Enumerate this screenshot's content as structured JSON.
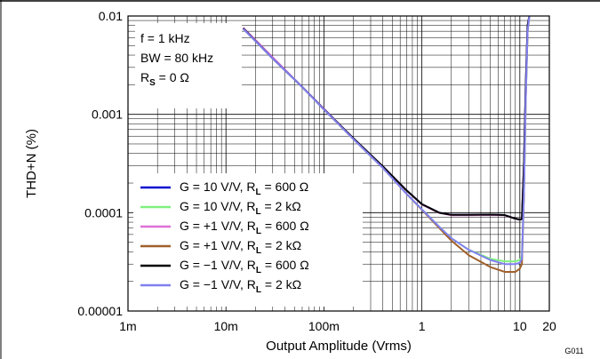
{
  "chart_data": {
    "type": "line",
    "title": "",
    "xlabel": "Output Amplitude (Vrms)",
    "ylabel": "THD+N (%)",
    "xscale": "log",
    "yscale": "log",
    "xlim": [
      0.001,
      20
    ],
    "ylim": [
      1e-05,
      0.01
    ],
    "grid": true,
    "legend_position": "bottom-left",
    "x_tick_labels": [
      {
        "value": 0.001,
        "label": "1m"
      },
      {
        "value": 0.01,
        "label": "10m"
      },
      {
        "value": 0.1,
        "label": "100m"
      },
      {
        "value": 1,
        "label": "1"
      },
      {
        "value": 10,
        "label": "10"
      },
      {
        "value": 20,
        "label": "20"
      }
    ],
    "y_tick_labels": [
      {
        "value": 0.01,
        "label": "0.01"
      },
      {
        "value": 0.001,
        "label": "0.001"
      },
      {
        "value": 0.0001,
        "label": "0.0001"
      },
      {
        "value": 1e-05,
        "label": "0.00001"
      }
    ],
    "annotations": [
      {
        "main": "f = 1 kHz",
        "sub": ""
      },
      {
        "main": "BW = 80 kHz",
        "sub": ""
      },
      {
        "main": "R",
        "sub": "S",
        "tail": " = 0 Ω"
      }
    ],
    "figure_id": "G011",
    "series": [
      {
        "label_main": "G = 10 V/V, R",
        "label_sub": "L",
        "label_tail": " = 600 Ω",
        "color": "#0a0ad0",
        "x": [
          0.015,
          0.03,
          0.06,
          0.1,
          0.2,
          0.4,
          0.7,
          1.0,
          1.5,
          2,
          3,
          5,
          7,
          9,
          10,
          10.5,
          11,
          11.5,
          12,
          12.5
        ],
        "y": [
          0.0075,
          0.0037,
          0.0019,
          0.00113,
          0.00057,
          0.000295,
          0.000168,
          0.000122,
          0.0001,
          9.5e-05,
          9.5e-05,
          9.55e-05,
          9.45e-05,
          8.7e-05,
          8.5e-05,
          8.6e-05,
          0.0003,
          0.002,
          0.008,
          0.015
        ]
      },
      {
        "label_main": "G = 10 V/V, R",
        "label_sub": "L",
        "label_tail": " = 2 kΩ",
        "color": "#80f080",
        "x": [
          0.015,
          0.03,
          0.06,
          0.1,
          0.2,
          0.4,
          0.7,
          1.0,
          1.5,
          2,
          3,
          5,
          7,
          9,
          10,
          10.5,
          11,
          11.5,
          12,
          12.5
        ],
        "y": [
          0.0074,
          0.0037,
          0.0019,
          0.00112,
          0.00056,
          0.000285,
          0.000155,
          0.000108,
          7.2e-05,
          5.5e-05,
          4.2e-05,
          3.4e-05,
          3.2e-05,
          3.2e-05,
          3.3e-05,
          3.6e-05,
          0.00015,
          0.0015,
          0.007,
          0.015
        ]
      },
      {
        "label_main": "G = +1 V/V, R",
        "label_sub": "L",
        "label_tail": " = 600 Ω",
        "color": "#e070d8",
        "x": [
          0.015,
          0.03,
          0.06,
          0.1,
          0.2,
          0.4,
          0.7,
          1.0,
          1.5,
          2,
          3,
          5,
          7,
          9,
          10,
          10.5,
          11,
          11.5,
          12,
          12.5
        ],
        "y": [
          0.0076,
          0.0038,
          0.0019,
          0.00114,
          0.00057,
          0.000295,
          0.000168,
          0.000121,
          9.95e-05,
          9.4e-05,
          9.4e-05,
          9.45e-05,
          9.4e-05,
          8.7e-05,
          8.5e-05,
          8.6e-05,
          0.0003,
          0.002,
          0.008,
          0.015
        ]
      },
      {
        "label_main": "G = +1 V/V, R",
        "label_sub": "L",
        "label_tail": " = 2 kΩ",
        "color": "#a0602a",
        "x": [
          0.015,
          0.03,
          0.06,
          0.1,
          0.2,
          0.4,
          0.7,
          1.0,
          1.5,
          2,
          3,
          5,
          7,
          9,
          10,
          10.5,
          11,
          11.5,
          12,
          12.5
        ],
        "y": [
          0.0074,
          0.0037,
          0.0019,
          0.00112,
          0.00056,
          0.000285,
          0.000155,
          0.000107,
          7e-05,
          5.2e-05,
          3.7e-05,
          2.8e-05,
          2.5e-05,
          2.5e-05,
          2.7e-05,
          3e-05,
          0.00015,
          0.0015,
          0.007,
          0.015
        ]
      },
      {
        "label_main": "G = −1 V/V, R",
        "label_sub": "L",
        "label_tail": " = 600 Ω",
        "color": "#000000",
        "x": [
          0.015,
          0.03,
          0.06,
          0.1,
          0.2,
          0.4,
          0.7,
          1.0,
          1.5,
          2,
          3,
          5,
          7,
          9,
          10,
          10.5,
          11,
          11.5,
          12,
          12.5
        ],
        "y": [
          0.0075,
          0.0037,
          0.0019,
          0.00113,
          0.00057,
          0.000295,
          0.000168,
          0.000122,
          0.0001,
          9.5e-05,
          9.5e-05,
          9.55e-05,
          9.45e-05,
          8.7e-05,
          8.5e-05,
          8.6e-05,
          0.0003,
          0.002,
          0.008,
          0.015
        ]
      },
      {
        "label_main": "G = −1 V/V, R",
        "label_sub": "L",
        "label_tail": " = 2 kΩ",
        "color": "#8080f0",
        "x": [
          0.015,
          0.03,
          0.06,
          0.1,
          0.2,
          0.4,
          0.7,
          1.0,
          1.5,
          2,
          3,
          5,
          7,
          9,
          10,
          10.5,
          11,
          11.5,
          12,
          12.5
        ],
        "y": [
          0.0074,
          0.0037,
          0.0019,
          0.00112,
          0.00056,
          0.000285,
          0.000155,
          0.000108,
          7.2e-05,
          5.5e-05,
          4.2e-05,
          3.3e-05,
          3e-05,
          3e-05,
          3.1e-05,
          3.4e-05,
          0.00015,
          0.0015,
          0.007,
          0.015
        ]
      }
    ]
  }
}
